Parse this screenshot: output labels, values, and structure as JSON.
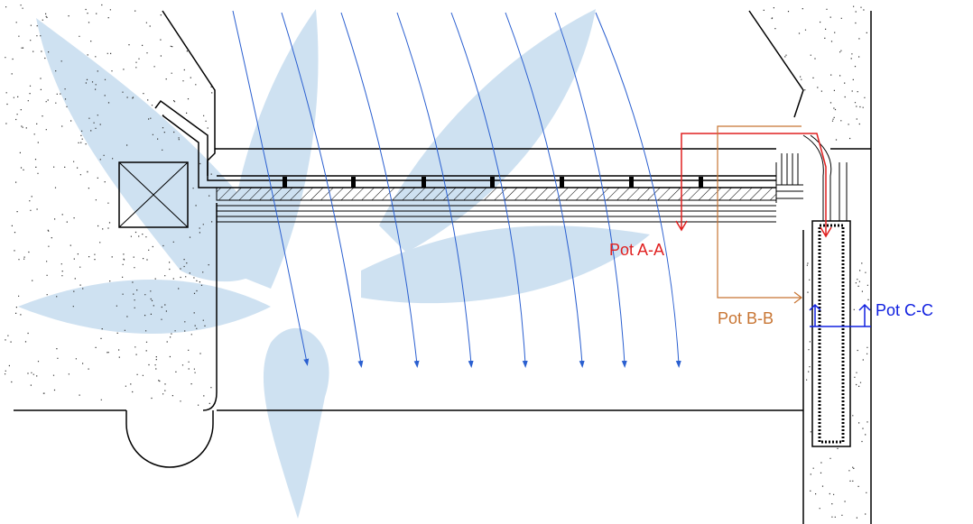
{
  "labels": {
    "pot_a": "Pot A-A",
    "pot_b": "Pot B-B",
    "pot_c": "Pot C-C"
  }
}
